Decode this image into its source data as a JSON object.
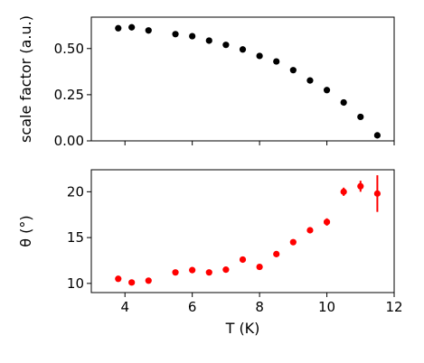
{
  "chart_data": [
    {
      "type": "scatter",
      "xlabel": "",
      "ylabel": "scale factor (a.u.)",
      "xlim": [
        3,
        12
      ],
      "ylim": [
        0.0,
        0.67
      ],
      "yticks": [
        "0.00",
        "0.25",
        "0.50"
      ],
      "ytick_values": [
        0.0,
        0.25,
        0.5
      ],
      "xticks_labels_shown": false,
      "marker_color": "#000000",
      "series": [
        {
          "x": [
            3.8,
            4.2,
            4.7,
            5.5,
            6.0,
            6.5,
            7.0,
            7.5,
            8.0,
            8.5,
            9.0,
            9.5,
            10.0,
            10.5,
            11.0,
            11.5
          ],
          "y": [
            0.61,
            0.615,
            0.598,
            0.578,
            0.567,
            0.543,
            0.52,
            0.495,
            0.46,
            0.43,
            0.383,
            0.327,
            0.275,
            0.208,
            0.13,
            0.03
          ]
        }
      ]
    },
    {
      "type": "scatter",
      "xlabel": "T (K)",
      "ylabel": "θ (°)",
      "xlim": [
        3,
        12
      ],
      "ylim": [
        9.0,
        22.4
      ],
      "xticks": [
        "4",
        "6",
        "8",
        "10",
        "12"
      ],
      "xtick_values": [
        4,
        6,
        8,
        10,
        12
      ],
      "yticks": [
        "10",
        "15",
        "20"
      ],
      "ytick_values": [
        10,
        15,
        20
      ],
      "marker_color": "#ff0000",
      "series": [
        {
          "x": [
            3.8,
            4.2,
            4.7,
            5.5,
            6.0,
            6.5,
            7.0,
            7.5,
            8.0,
            8.5,
            9.0,
            9.5,
            10.0,
            10.5,
            11.0,
            11.5
          ],
          "y": [
            10.5,
            10.1,
            10.3,
            11.2,
            11.45,
            11.2,
            11.5,
            12.6,
            11.8,
            13.2,
            14.5,
            15.8,
            16.7,
            20.0,
            20.6,
            19.8
          ],
          "yerr": [
            0.2,
            0.2,
            0.2,
            0.2,
            0.2,
            0.2,
            0.2,
            0.25,
            0.25,
            0.25,
            0.3,
            0.3,
            0.4,
            0.45,
            0.6,
            2.0
          ]
        }
      ]
    }
  ]
}
